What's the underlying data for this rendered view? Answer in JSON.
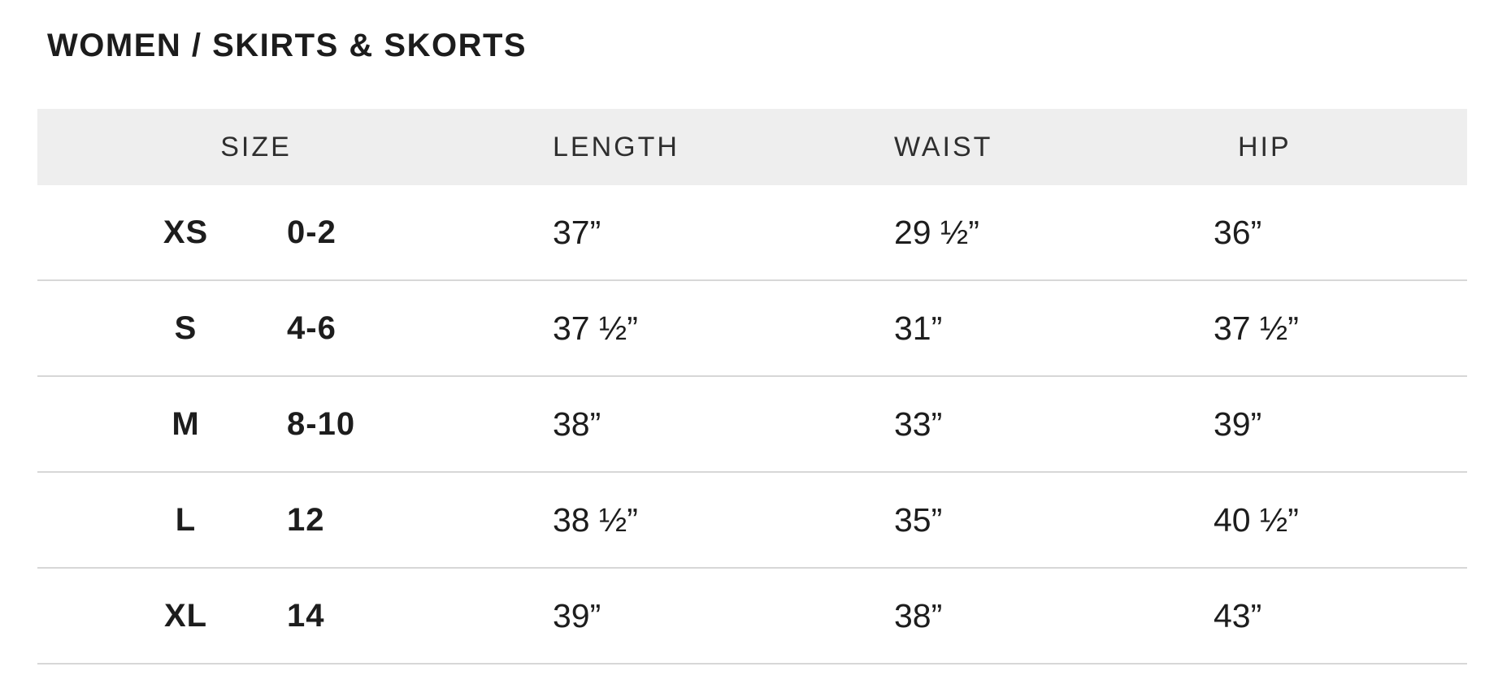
{
  "page": {
    "title": "WOMEN / SKIRTS & SKORTS"
  },
  "size_chart": {
    "columns": {
      "size": "SIZE",
      "length": "LENGTH",
      "waist": "WAIST",
      "hip": "HIP"
    },
    "rows": [
      {
        "size_letter": "XS",
        "size_range": "0-2",
        "length": "37”",
        "waist": "29 ½”",
        "hip": "36”"
      },
      {
        "size_letter": "S",
        "size_range": "4-6",
        "length": "37 ½”",
        "waist": "31”",
        "hip": "37 ½”"
      },
      {
        "size_letter": "M",
        "size_range": "8-10",
        "length": "38”",
        "waist": "33”",
        "hip": "39”"
      },
      {
        "size_letter": "L",
        "size_range": "12",
        "length": "38 ½”",
        "waist": "35”",
        "hip": "40 ½”"
      },
      {
        "size_letter": "XL",
        "size_range": "14",
        "length": "39”",
        "waist": "38”",
        "hip": "43”"
      }
    ]
  },
  "colors": {
    "header_bg": "#eeeeee",
    "divider": "#d7d7d7",
    "text": "#1d1d1d"
  }
}
